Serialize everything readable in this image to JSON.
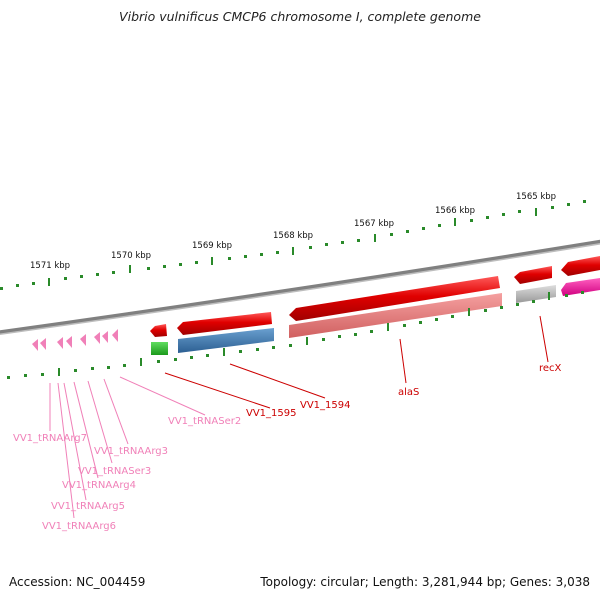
{
  "title": "Vibrio vulnificus CMCP6 chromosome I, complete genome",
  "footer": {
    "accession": "Accession: NC_004459",
    "summary": "Topology: circular; Length: 3,281,944 bp; Genes: 3,038"
  },
  "scale_labels": [
    "1565 kbp",
    "1566 kbp",
    "1567 kbp",
    "1568 kbp",
    "1569 kbp",
    "1570 kbp",
    "1571 kbp"
  ],
  "gene_labels": {
    "recX": "recX",
    "alaS": "alaS",
    "vv1_1594": "VV1_1594",
    "vv1_1595": "VV1_1595",
    "tRNASer2": "VV1_tRNASer2",
    "tRNAArg3": "VV1_tRNAArg3",
    "tRNAArg7": "VV1_tRNAArg7",
    "tRNASer3": "VV1_tRNASer3",
    "tRNAArg4": "VV1_tRNAArg4",
    "tRNAArg5": "VV1_tRNAArg5",
    "tRNAArg6": "VV1_tRNAArg6"
  },
  "colors": {
    "cds_forward": "#e00000",
    "cds_shadow": "#f09090",
    "trna": "#f080b8",
    "gc_skew": "#2a8a2a",
    "backbone": "#888888",
    "blue_feature": "#3f78b0",
    "green_feature": "#33bb33",
    "gray_feature": "#b8b8b8",
    "magenta_feature": "#ff1aa0",
    "label_red": "#cc0000",
    "label_pink": "#f080b8"
  }
}
